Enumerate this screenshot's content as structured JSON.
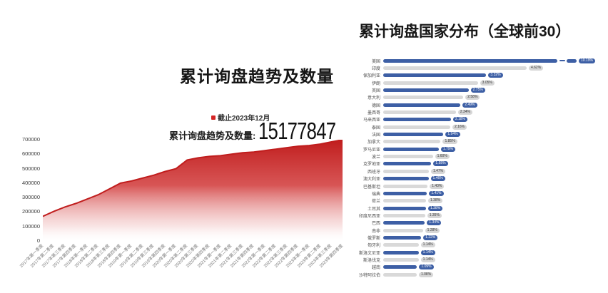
{
  "left_chart": {
    "title": "累计询盘趋势及数量",
    "asof_label": "截止2023年12月",
    "kpi_label": "累计询盘趋势及数量:",
    "kpi_value": "15177847"
  },
  "right_chart": {
    "title": "累计询盘国家分布（全球前30）"
  },
  "colors": {
    "area_red": "#c01d1d",
    "bar_blue": "#3d5fa5",
    "bar_gray": "#d9d9d9",
    "accent_red": "#d42525"
  },
  "chart_data": [
    {
      "type": "area",
      "title": "累计询盘趋势及数量",
      "xlabel": "",
      "ylabel": "",
      "ylim": [
        0,
        700000
      ],
      "yticks": [
        700000,
        600000,
        500000,
        400000,
        300000,
        200000,
        100000,
        0
      ],
      "grid": false,
      "legend": "none",
      "area_color": "#c01d1d",
      "x": [
        "2017年第一季度",
        "2017年第二季度",
        "2017年第三季度",
        "2017年第四季度",
        "2018年第一季度",
        "2018年第二季度",
        "2018年第三季度",
        "2018年第四季度",
        "2019年第一季度",
        "2019年第二季度",
        "2019年第三季度",
        "2019年第四季度",
        "2020年第一季度",
        "2020年第二季度",
        "2020年第三季度",
        "2020年第四季度",
        "2021年第一季度",
        "2021年第二季度",
        "2021年第三季度",
        "2021年第四季度",
        "2022年第一季度",
        "2022年第二季度",
        "2022年第三季度",
        "2022年第四季度",
        "2023年第一季度",
        "2023年第二季度",
        "2023年第三季度",
        "2023年第四季度"
      ],
      "values": [
        170000,
        205000,
        235000,
        260000,
        290000,
        320000,
        360000,
        400000,
        415000,
        435000,
        455000,
        480000,
        500000,
        560000,
        575000,
        585000,
        590000,
        600000,
        610000,
        615000,
        625000,
        635000,
        645000,
        655000,
        660000,
        670000,
        685000,
        700000
      ]
    },
    {
      "type": "bar",
      "orientation": "horizontal",
      "title": "累计询盘国家分布（全球前30）",
      "broken_axis_first_bar": true,
      "categories": [
        "美国",
        "印度",
        "保加利亚",
        "伊朗",
        "英国",
        "意大利",
        "德国",
        "墨西哥",
        "马来西亚",
        "泰国",
        "法国",
        "加拿大",
        "罗马尼亚",
        "波兰",
        "克罗地亚",
        "西班牙",
        "澳大利亚",
        "巴基斯坦",
        "瑞典",
        "荷兰",
        "土耳其",
        "印度尼西亚",
        "巴西",
        "南非",
        "俄罗斯",
        "匈牙利",
        "斯洛文尼亚",
        "斯洛伐克",
        "越南",
        "沙特阿拉伯"
      ],
      "values": [
        10.19,
        4.62,
        3.32,
        3.05,
        2.75,
        2.58,
        2.49,
        2.34,
        2.18,
        2.16,
        1.94,
        1.85,
        1.79,
        1.6,
        1.55,
        1.47,
        1.46,
        1.43,
        1.41,
        1.38,
        1.38,
        1.35,
        1.34,
        1.28,
        1.22,
        1.14,
        1.14,
        1.14,
        1.09,
        1.08
      ],
      "labels": [
        "10.19%",
        "4.62%",
        "3.32%",
        "3.05%",
        "2.75%",
        "2.58%",
        "2.49%",
        "2.34%",
        "2.18%",
        "2.16%",
        "1.94%",
        "1.85%",
        "1.79%",
        "1.60%",
        "1.55%",
        "1.47%",
        "1.46%",
        "1.43%",
        "1.41%",
        "1.38%",
        "1.38%",
        "1.35%",
        "1.34%",
        "1.28%",
        "1.22%",
        "1.14%",
        "1.14%",
        "1.14%",
        "1.09%",
        "1.08%"
      ]
    }
  ]
}
